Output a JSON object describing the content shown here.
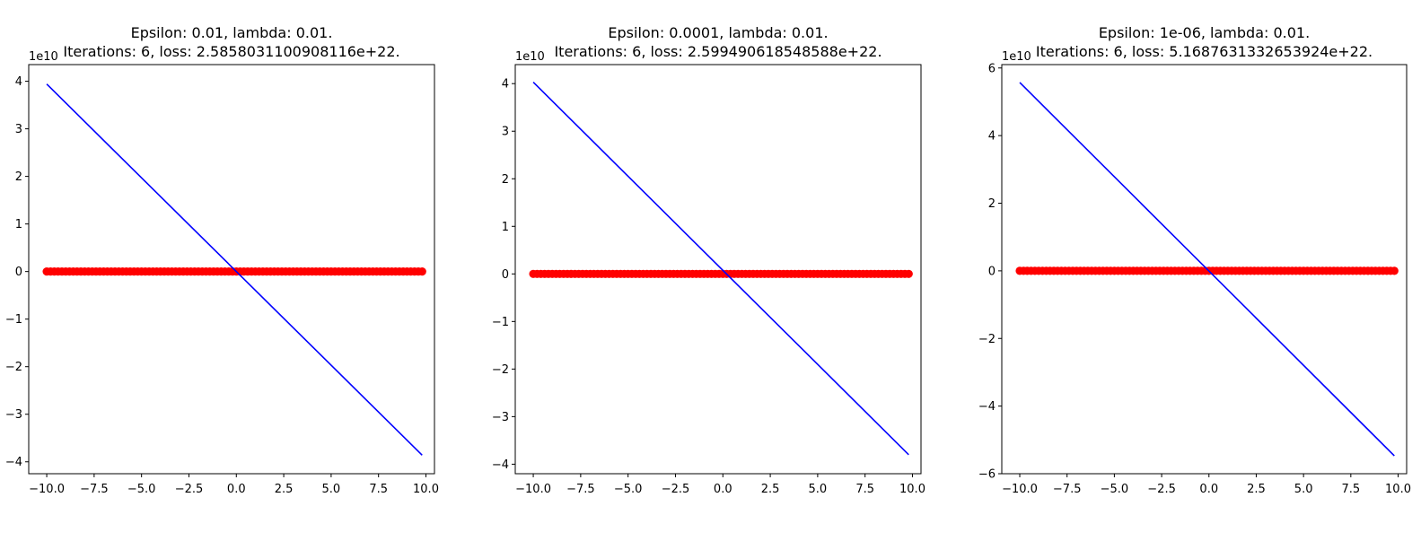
{
  "chart_data": [
    {
      "type": "line+scatter",
      "title_line1": "Epsilon: 0.01, lambda: 0.01.",
      "title_line2": "Iterations: 6, loss: 2.5858031100908116e+22.",
      "xlabel": "",
      "ylabel": "",
      "offset_text": "1e10",
      "xlim": [
        -10.95,
        10.45
      ],
      "ylim": [
        -4.25,
        4.35
      ],
      "xticks": [
        -10.0,
        -7.5,
        -5.0,
        -2.5,
        0.0,
        2.5,
        5.0,
        7.5,
        10.0
      ],
      "xtick_labels": [
        "−10.0",
        "−7.5",
        "−5.0",
        "−2.5",
        "0.0",
        "2.5",
        "5.0",
        "7.5",
        "10.0"
      ],
      "yticks": [
        -4,
        -3,
        -2,
        -1,
        0,
        1,
        2,
        3,
        4
      ],
      "ytick_labels": [
        "−4",
        "−3",
        "−2",
        "−1",
        "0",
        "1",
        "2",
        "3",
        "4"
      ],
      "line": {
        "x": [
          -10.0,
          9.8
        ],
        "y": [
          3.94,
          -3.86
        ],
        "color": "#0000ff"
      },
      "scatter": {
        "x_start": -10.0,
        "x_end": 9.8,
        "x_step": 0.2,
        "y": 0,
        "color": "#ff0000"
      },
      "grid": false
    },
    {
      "type": "line+scatter",
      "title_line1": "Epsilon: 0.0001, lambda: 0.01.",
      "title_line2": "Iterations: 6, loss: 2.599490618548588e+22.",
      "xlabel": "",
      "ylabel": "",
      "offset_text": "1e10",
      "xlim": [
        -10.95,
        10.45
      ],
      "ylim": [
        -4.2,
        4.4
      ],
      "xticks": [
        -10.0,
        -7.5,
        -5.0,
        -2.5,
        0.0,
        2.5,
        5.0,
        7.5,
        10.0
      ],
      "xtick_labels": [
        "−10.0",
        "−7.5",
        "−5.0",
        "−2.5",
        "0.0",
        "2.5",
        "5.0",
        "7.5",
        "10.0"
      ],
      "yticks": [
        -4,
        -3,
        -2,
        -1,
        0,
        1,
        2,
        3,
        4
      ],
      "ytick_labels": [
        "−4",
        "−3",
        "−2",
        "−1",
        "0",
        "1",
        "2",
        "3",
        "4"
      ],
      "line": {
        "x": [
          -10.0,
          9.8
        ],
        "y": [
          4.03,
          -3.8
        ],
        "color": "#0000ff"
      },
      "scatter": {
        "x_start": -10.0,
        "x_end": 9.8,
        "x_step": 0.2,
        "y": 0,
        "color": "#ff0000"
      },
      "grid": false
    },
    {
      "type": "line+scatter",
      "title_line1": "Epsilon: 1e-06, lambda: 0.01.",
      "title_line2": "Iterations: 6, loss: 5.1687631332653924e+22.",
      "xlabel": "",
      "ylabel": "",
      "offset_text": "1e10",
      "xlim": [
        -10.95,
        10.45
      ],
      "ylim": [
        -6.0,
        6.1
      ],
      "xticks": [
        -10.0,
        -7.5,
        -5.0,
        -2.5,
        0.0,
        2.5,
        5.0,
        7.5,
        10.0
      ],
      "xtick_labels": [
        "−10.0",
        "−7.5",
        "−5.0",
        "−2.5",
        "0.0",
        "2.5",
        "5.0",
        "7.5",
        "10.0"
      ],
      "yticks": [
        -6,
        -4,
        -2,
        0,
        2,
        4,
        6
      ],
      "ytick_labels": [
        "−6",
        "−4",
        "−2",
        "0",
        "2",
        "4",
        "6"
      ],
      "line": {
        "x": [
          -10.0,
          9.8
        ],
        "y": [
          5.57,
          -5.47
        ],
        "color": "#0000ff"
      },
      "scatter": {
        "x_start": -10.0,
        "x_end": 9.8,
        "x_step": 0.2,
        "y": 0,
        "color": "#ff0000"
      },
      "grid": false
    }
  ]
}
